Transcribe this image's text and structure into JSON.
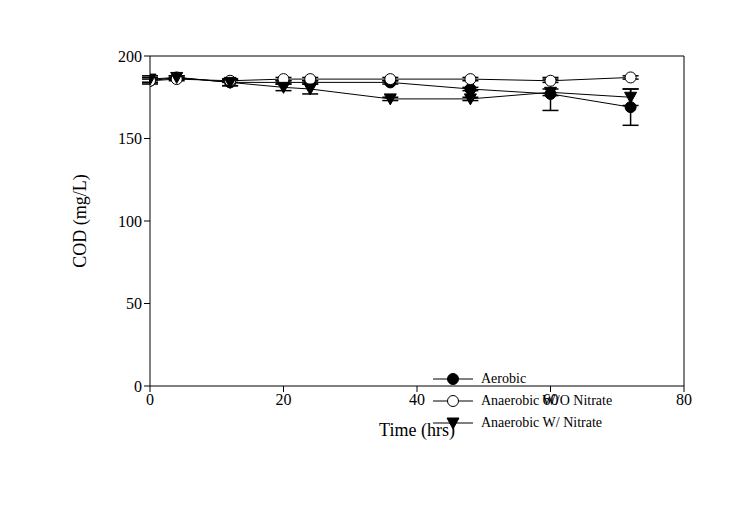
{
  "chart_data": {
    "type": "line",
    "x_label": "Time (hrs)",
    "y_label": "COD (mg/L)",
    "xlim": [
      0,
      80
    ],
    "xticks": [
      0,
      20,
      40,
      60,
      80
    ],
    "ylim": [
      0,
      200
    ],
    "yticks": [
      0,
      50,
      100,
      150,
      200
    ],
    "legend": "lower right",
    "x": [
      0,
      4,
      12,
      20,
      24,
      36,
      48,
      60,
      72
    ],
    "series": [
      {
        "name": "Aerobic",
        "color": "#000000",
        "marker": "filled_circle",
        "line_style": "solid",
        "values": [
          185,
          187,
          184,
          184,
          184,
          184,
          180,
          177,
          169
        ],
        "errors": [
          2,
          1,
          2,
          1,
          1,
          1,
          1,
          10,
          11
        ]
      },
      {
        "name": "Anaerobic W/O Nitrate",
        "color": "#000000",
        "marker": "open_circle",
        "line_style": "solid",
        "values": [
          185,
          186,
          185,
          186,
          186,
          186,
          186,
          185,
          187
        ],
        "errors": [
          1,
          1,
          1,
          1,
          1,
          1,
          1,
          1,
          1
        ]
      },
      {
        "name": "Anaerobic W/ Nitrate",
        "color": "#000000",
        "marker": "filled_triangle_down",
        "line_style": "solid",
        "values": [
          186,
          187,
          184,
          181,
          180,
          174,
          174,
          178,
          175
        ],
        "errors": [
          2,
          1,
          2,
          2,
          3,
          1,
          1,
          2,
          5
        ]
      }
    ]
  }
}
